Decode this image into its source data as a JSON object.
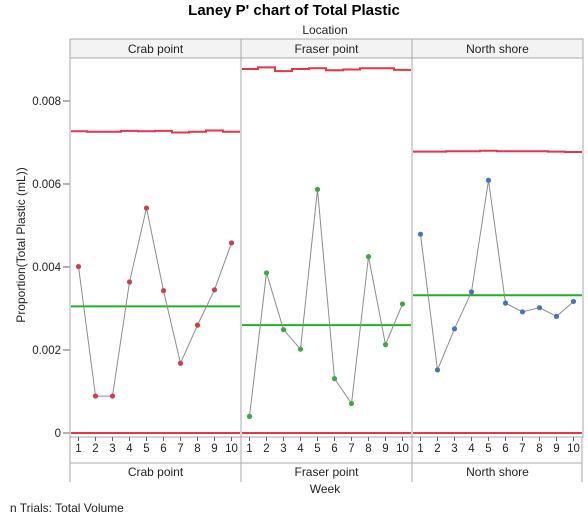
{
  "chart_data": {
    "type": "line",
    "title": "Laney P' chart of Total Plastic",
    "group_label": "Location",
    "xlabel": "Week",
    "ylabel": "Proportion(Total Plastic (mL))",
    "ylim": [
      0,
      0.009
    ],
    "y_ticks": [
      "0",
      "0.002",
      "0.004",
      "0.006",
      "0.008"
    ],
    "footnote": "n Trials: Total Volume",
    "categories": [
      "1",
      "2",
      "3",
      "4",
      "5",
      "6",
      "7",
      "8",
      "9",
      "10"
    ],
    "colors": {
      "limit": "#e8334a",
      "center": "#22b024",
      "line": "#8c8c8c"
    },
    "panels": [
      {
        "name": "Crab point",
        "color": "#c94148",
        "values": [
          0.00401,
          0.00089,
          0.00089,
          0.00364,
          0.00542,
          0.00343,
          0.00168,
          0.0026,
          0.00345,
          0.00458
        ],
        "center": 0.00305,
        "ucl": [
          0.00727,
          0.00726,
          0.00726,
          0.00728,
          0.00727,
          0.00728,
          0.00724,
          0.00726,
          0.00729,
          0.00726
        ],
        "lcl": 0
      },
      {
        "name": "Fraser point",
        "color": "#3ea845",
        "values": [
          0.0004,
          0.00386,
          0.00249,
          0.00202,
          0.00587,
          0.00131,
          0.00071,
          0.00425,
          0.00213,
          0.00311
        ],
        "center": 0.0026,
        "ucl": [
          0.00877,
          0.00881,
          0.00872,
          0.00877,
          0.00879,
          0.00874,
          0.00876,
          0.00879,
          0.00879,
          0.00875
        ],
        "lcl": 0
      },
      {
        "name": "North shore",
        "color": "#4a72c4",
        "values": [
          0.00479,
          0.00152,
          0.00251,
          0.0034,
          0.00609,
          0.00313,
          0.00292,
          0.00302,
          0.00281,
          0.00317
        ],
        "center": 0.00332,
        "ucl": [
          0.00678,
          0.00678,
          0.00679,
          0.00679,
          0.0068,
          0.00679,
          0.00679,
          0.00679,
          0.00678,
          0.00677
        ],
        "lcl": 0
      }
    ]
  }
}
